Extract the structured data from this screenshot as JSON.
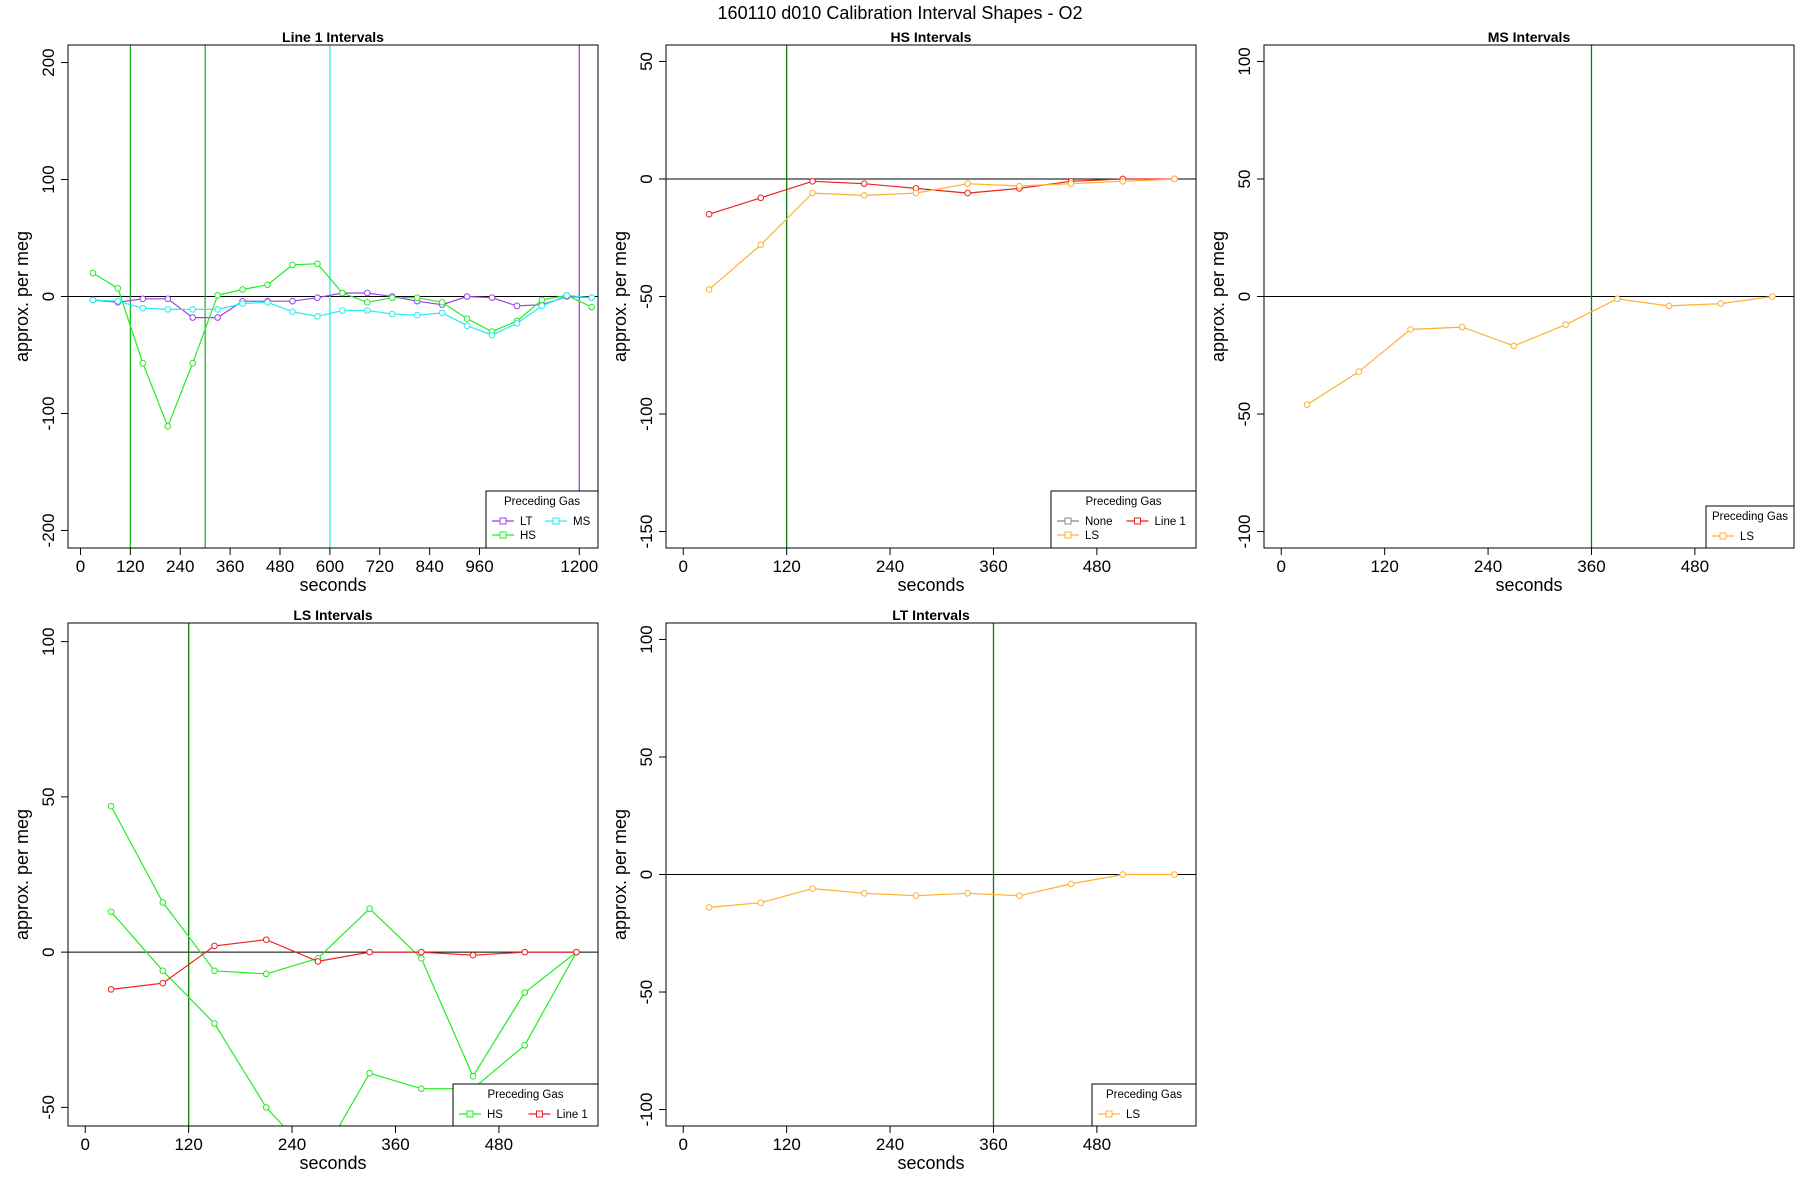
{
  "figure_title": "160110   d010   Calibration Interval Shapes - O2",
  "colors": {
    "LT": "#a03ff0",
    "HS": "#22ee22",
    "MS": "#22eeee",
    "LS": "#ffb030",
    "Line 1": "#ee2020",
    "None": "#888888",
    "vline_green": "#107a10",
    "zero_line": "#000000"
  },
  "chart_data": [
    {
      "type": "line",
      "title": "Line 1 Intervals",
      "xlabel": "seconds",
      "ylabel": "approx. per meg",
      "xlim": [
        -30,
        1245
      ],
      "ylim": [
        -215,
        215
      ],
      "xticks": [
        0,
        120,
        240,
        360,
        480,
        600,
        720,
        840,
        960,
        1200
      ],
      "xtick_labels": [
        "0",
        "120",
        "240",
        "360",
        "480",
        "600",
        "720",
        "840",
        "960",
        "1200"
      ],
      "yticks": [
        -200,
        -100,
        0,
        100,
        200
      ],
      "ytick_labels": [
        "-200",
        "-100",
        "0",
        "100",
        "200"
      ],
      "vlines": [
        {
          "x": 120,
          "color": "#22bb22"
        },
        {
          "x": 300,
          "color": "#22bb22"
        },
        {
          "x": 600,
          "color": "#22eeee"
        },
        {
          "x": 1200,
          "color": "#a03ff0"
        }
      ],
      "legend": {
        "title": "Preceding Gas",
        "entries": [
          "LT",
          "MS",
          "HS"
        ],
        "columns": 2,
        "position": "bottom-right"
      },
      "series": [
        {
          "name": "LT",
          "x": [
            30,
            90,
            150,
            210,
            270,
            330,
            390,
            450,
            510,
            570,
            630,
            690,
            750,
            810,
            870,
            930,
            990,
            1050,
            1110,
            1170,
            1230
          ],
          "y": [
            -3,
            -5,
            -2,
            -2,
            -18,
            -18,
            -4,
            -4,
            -4,
            -1,
            3,
            3,
            0,
            -4,
            -7,
            0,
            -1,
            -8,
            -7,
            0,
            -1
          ]
        },
        {
          "name": "HS",
          "x": [
            30,
            90,
            150,
            210,
            270,
            330,
            390,
            450,
            510,
            570,
            630,
            690,
            750,
            810,
            870,
            930,
            990,
            1050,
            1110,
            1170,
            1230
          ],
          "y": [
            20,
            7,
            -57,
            -111,
            -57,
            1,
            6,
            10,
            27,
            28,
            3,
            -5,
            -1,
            -1,
            -5,
            -19,
            -30,
            -21,
            -3,
            1,
            -9
          ]
        },
        {
          "name": "MS",
          "x": [
            30,
            90,
            150,
            210,
            270,
            330,
            390,
            450,
            510,
            570,
            630,
            690,
            750,
            810,
            870,
            930,
            990,
            1050,
            1110,
            1170,
            1230
          ],
          "y": [
            -3,
            -4,
            -10,
            -11,
            -11,
            -11,
            -6,
            -5,
            -13,
            -17,
            -12,
            -12,
            -15,
            -16,
            -14,
            -25,
            -33,
            -23,
            -8,
            1,
            -1
          ]
        }
      ]
    },
    {
      "type": "line",
      "title": "HS Intervals",
      "xlabel": "seconds",
      "ylabel": "approx. per meg",
      "xlim": [
        -20,
        595
      ],
      "ylim": [
        -157,
        57
      ],
      "xticks": [
        0,
        120,
        240,
        360,
        480
      ],
      "xtick_labels": [
        "0",
        "120",
        "240",
        "360",
        "480"
      ],
      "yticks": [
        -150,
        -100,
        -50,
        0,
        50
      ],
      "ytick_labels": [
        "-150",
        "-100",
        "-50",
        "0",
        "50"
      ],
      "vlines": [
        {
          "x": 120,
          "color": "#107a10"
        }
      ],
      "legend": {
        "title": "Preceding Gas",
        "entries": [
          "None",
          "Line 1",
          "LS"
        ],
        "columns": 2,
        "position": "bottom-right"
      },
      "series": [
        {
          "name": "Line 1",
          "x": [
            30,
            90,
            150,
            210,
            270,
            330,
            390,
            450,
            510,
            570
          ],
          "y": [
            -15,
            -8,
            -1,
            -2,
            -4,
            -6,
            -4,
            -1,
            0,
            0
          ]
        },
        {
          "name": "LS",
          "x": [
            30,
            90,
            150,
            210,
            270,
            330,
            390,
            450,
            510,
            570
          ],
          "y": [
            -47,
            -28,
            -6,
            -7,
            -6,
            -2,
            -3,
            -2,
            -1,
            0
          ]
        }
      ]
    },
    {
      "type": "line",
      "title": "MS Intervals",
      "xlabel": "seconds",
      "ylabel": "approx. per meg",
      "xlim": [
        -20,
        595
      ],
      "ylim": [
        -107,
        107
      ],
      "xticks": [
        0,
        120,
        240,
        360,
        480
      ],
      "xtick_labels": [
        "0",
        "120",
        "240",
        "360",
        "480"
      ],
      "yticks": [
        -100,
        -50,
        0,
        50,
        100
      ],
      "ytick_labels": [
        "-100",
        "-50",
        "0",
        "50",
        "100"
      ],
      "vlines": [
        {
          "x": 360,
          "color": "#107a10"
        }
      ],
      "legend": {
        "title": "Preceding Gas",
        "entries": [
          "LS"
        ],
        "columns": 1,
        "position": "bottom-right"
      },
      "series": [
        {
          "name": "LS",
          "x": [
            30,
            90,
            150,
            210,
            270,
            330,
            390,
            450,
            510,
            570
          ],
          "y": [
            -46,
            -32,
            -14,
            -13,
            -21,
            -12,
            -1,
            -4,
            -3,
            0
          ]
        }
      ]
    },
    {
      "type": "line",
      "title": "LS Intervals",
      "xlabel": "seconds",
      "ylabel": "approx. per meg",
      "xlim": [
        -20,
        595
      ],
      "ylim": [
        -56,
        106
      ],
      "xticks": [
        0,
        120,
        240,
        360,
        480
      ],
      "xtick_labels": [
        "0",
        "120",
        "240",
        "360",
        "480"
      ],
      "yticks": [
        -50,
        0,
        50,
        100
      ],
      "ytick_labels": [
        "-50",
        "0",
        "50",
        "100"
      ],
      "vlines": [
        {
          "x": 120,
          "color": "#107a10"
        }
      ],
      "legend": {
        "title": "Preceding Gas",
        "entries": [
          "HS",
          "Line 1"
        ],
        "columns": 2,
        "position": "bottom-right"
      },
      "series": [
        {
          "name": "HS",
          "x": [
            30,
            90,
            150,
            210,
            270,
            330,
            390,
            450,
            510,
            570
          ],
          "y": [
            47,
            16,
            -6,
            -7,
            -2,
            14,
            -2,
            -40,
            -13,
            0
          ]
        },
        {
          "name": "HS",
          "x": [
            30,
            90,
            150,
            210,
            270,
            330,
            390,
            450,
            510,
            570
          ],
          "y": [
            13,
            -6,
            -23,
            -50,
            -68,
            -39,
            -44,
            -44,
            -30,
            0
          ]
        },
        {
          "name": "Line 1",
          "x": [
            30,
            90,
            150,
            210,
            270,
            330,
            390,
            450,
            510,
            570
          ],
          "y": [
            -12,
            -10,
            2,
            4,
            -3,
            0,
            0,
            -1,
            0,
            0
          ]
        }
      ]
    },
    {
      "type": "line",
      "title": "LT Intervals",
      "xlabel": "seconds",
      "ylabel": "approx. per meg",
      "xlim": [
        -20,
        595
      ],
      "ylim": [
        -107,
        107
      ],
      "xticks": [
        0,
        120,
        240,
        360,
        480
      ],
      "xtick_labels": [
        "0",
        "120",
        "240",
        "360",
        "480"
      ],
      "yticks": [
        -100,
        -50,
        0,
        50,
        100
      ],
      "ytick_labels": [
        "-100",
        "-50",
        "0",
        "50",
        "100"
      ],
      "vlines": [
        {
          "x": 360,
          "color": "#107a10"
        }
      ],
      "legend": {
        "title": "Preceding Gas",
        "entries": [
          "LS"
        ],
        "columns": 1,
        "position": "bottom-right"
      },
      "series": [
        {
          "name": "LS",
          "x": [
            30,
            90,
            150,
            210,
            270,
            330,
            390,
            450,
            510,
            570
          ],
          "y": [
            -14,
            -12,
            -6,
            -8,
            -9,
            -8,
            -9,
            -4,
            0,
            0
          ]
        }
      ]
    }
  ]
}
